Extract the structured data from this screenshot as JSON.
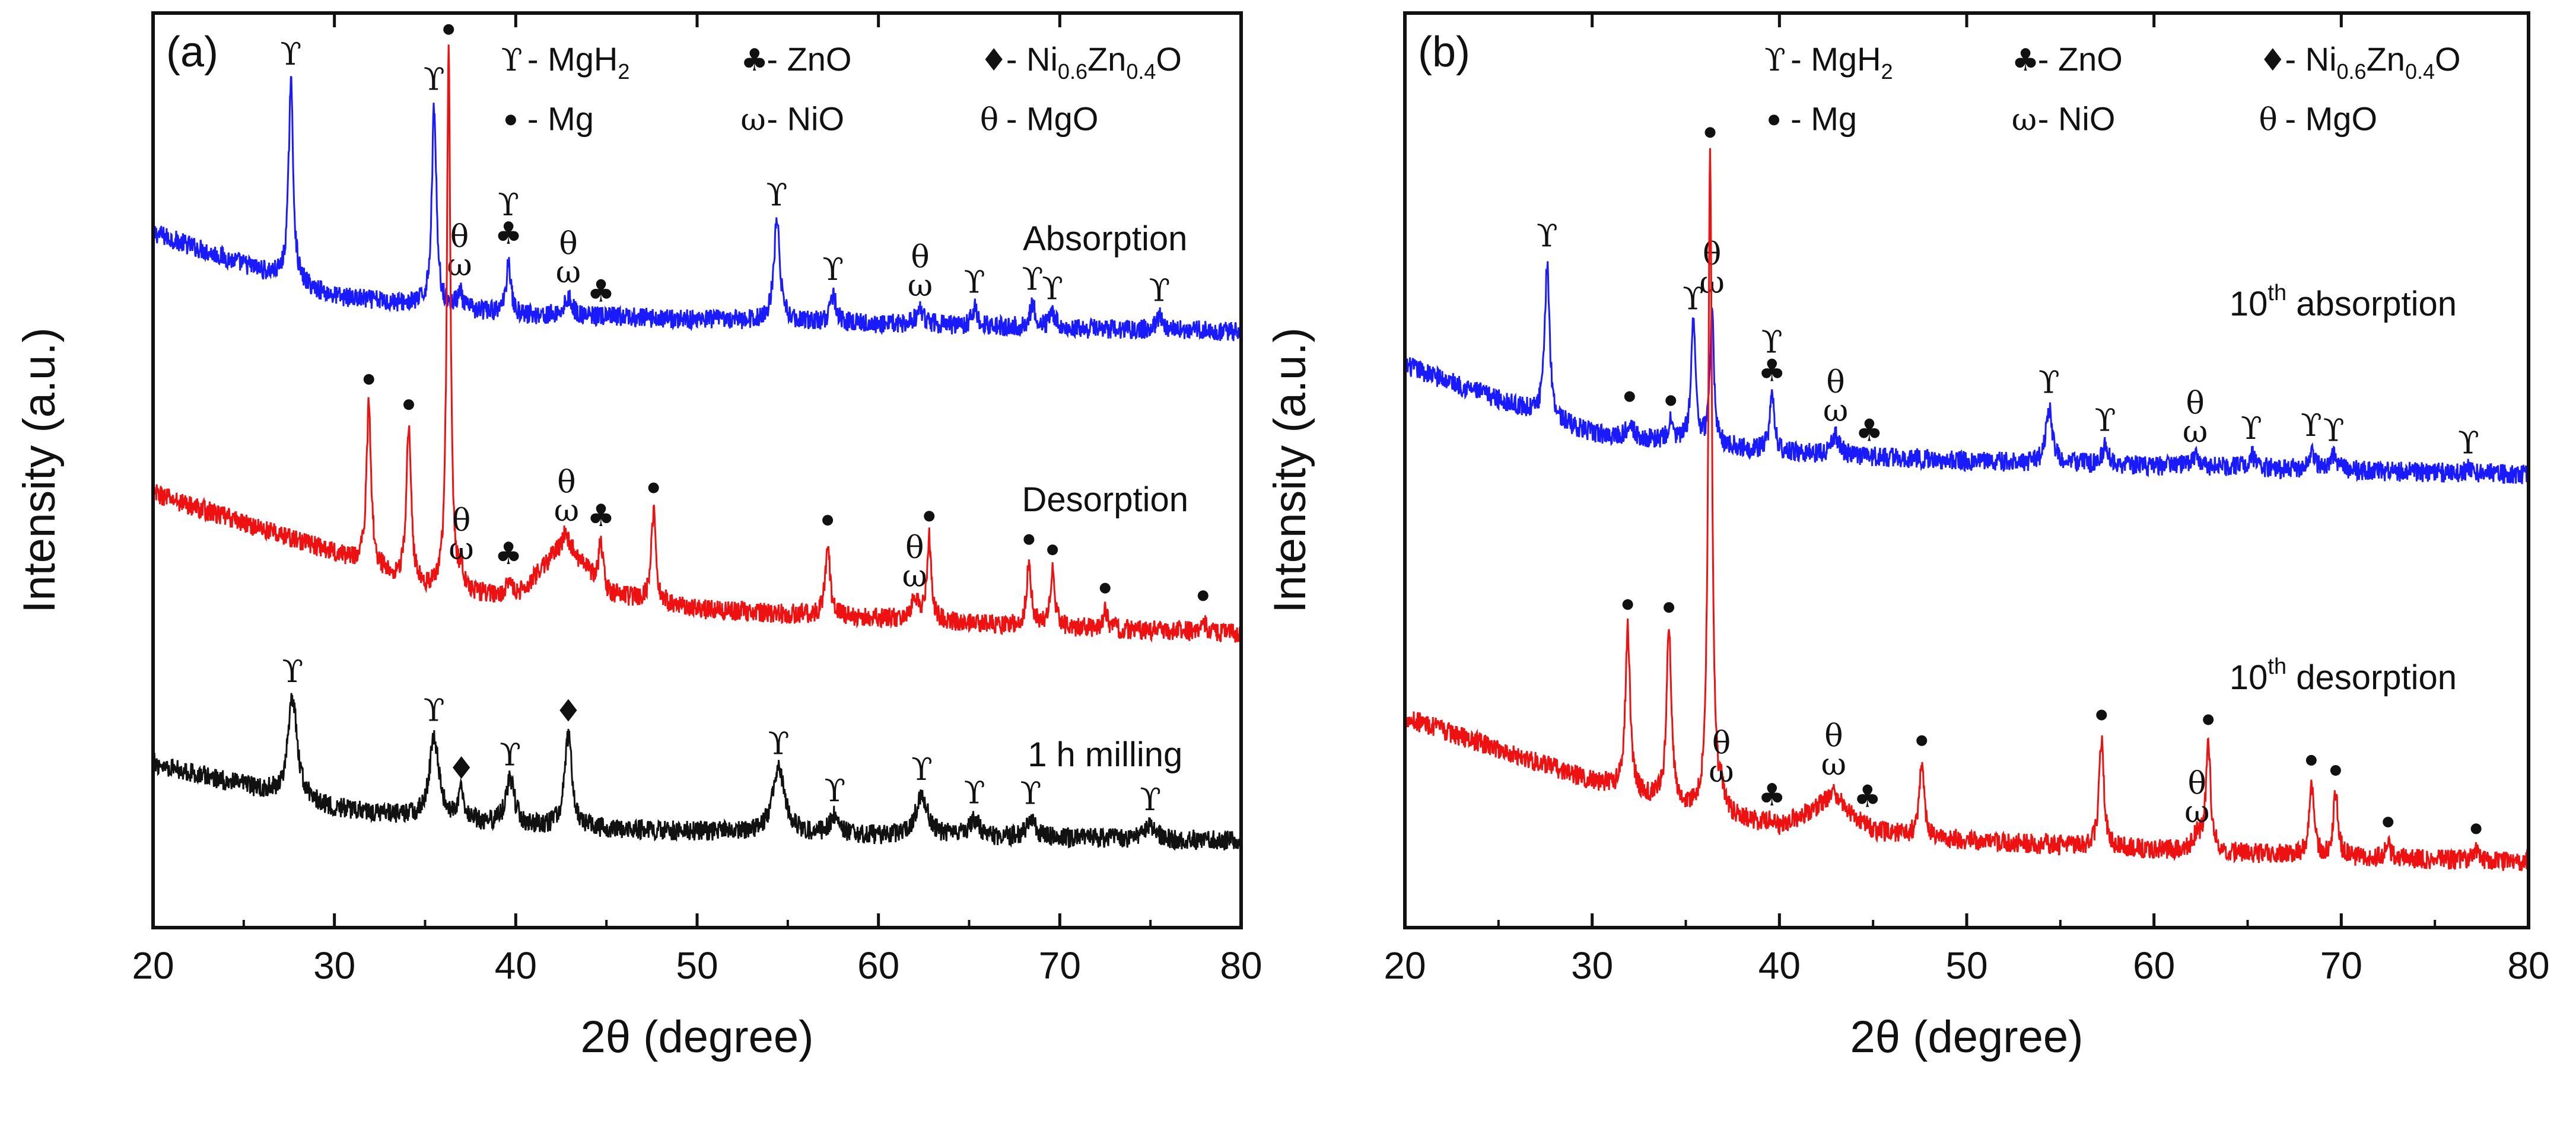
{
  "chart_data": [
    {
      "type": "line",
      "panel_label": "(a)",
      "xlabel": "2θ (degree)",
      "ylabel": "Intensity (a.u.)",
      "xlim": [
        20,
        80
      ],
      "xticks": [
        20,
        30,
        40,
        50,
        60,
        70,
        80
      ],
      "ylim": [
        0,
        100
      ],
      "yticks": [],
      "grid": false,
      "legend": [
        {
          "symbol": "ϒ",
          "suffix": "- MgH",
          "sub": "2",
          "tail": ""
        },
        {
          "symbol": "♣",
          "suffix": "- ZnO",
          "sub": "",
          "tail": ""
        },
        {
          "symbol": "♦",
          "suffix": "- Ni",
          "sub": "0.6",
          "mid": "Zn",
          "sub2": "0.4",
          "tail": "O"
        },
        {
          "symbol": "•",
          "suffix": "- Mg",
          "sub": "",
          "tail": ""
        },
        {
          "symbol": "ω",
          "suffix": "- NiO",
          "sub": "",
          "tail": ""
        },
        {
          "symbol": "θ",
          "suffix": "- MgO",
          "sub": "",
          "tail": ""
        }
      ],
      "series": [
        {
          "name": "Absorption",
          "label_pre": "Absorption",
          "label_sup": "",
          "label_post": "",
          "color": "#1a1aff",
          "baseline": [
            [
              20,
              76
            ],
            [
              30,
              69
            ],
            [
              40,
              67
            ],
            [
              50,
              66.5
            ],
            [
              60,
              66
            ],
            [
              70,
              65.5
            ],
            [
              80,
              65.2
            ]
          ],
          "peaks": [
            {
              "x": 27.6,
              "h": 22,
              "w": 0.15,
              "m": "ϒ"
            },
            {
              "x": 35.5,
              "h": 22,
              "w": 0.15,
              "m": "ϒ"
            },
            {
              "x": 36.9,
              "h": 2,
              "w": 0.15,
              "m": "θω"
            },
            {
              "x": 39.6,
              "h": 6,
              "w": 0.15,
              "m": "ϒ♣"
            },
            {
              "x": 42.9,
              "h": 2,
              "w": 0.25,
              "m": "θω"
            },
            {
              "x": 44.7,
              "h": 0,
              "w": 0.2,
              "m": "♣"
            },
            {
              "x": 54.4,
              "h": 11,
              "w": 0.2,
              "m": "ϒ"
            },
            {
              "x": 57.5,
              "h": 3,
              "w": 0.2,
              "m": "ϒ"
            },
            {
              "x": 62.3,
              "h": 1.5,
              "w": 0.3,
              "m": "θω"
            },
            {
              "x": 65.3,
              "h": 2,
              "w": 0.2,
              "m": "ϒ"
            },
            {
              "x": 68.5,
              "h": 2.5,
              "w": 0.2,
              "m": "ϒ"
            },
            {
              "x": 69.6,
              "h": 1.5,
              "w": 0.2,
              "m": "ϒ"
            },
            {
              "x": 75.5,
              "h": 1.5,
              "w": 0.2,
              "m": "ϒ"
            }
          ]
        },
        {
          "name": "Desorption",
          "label_pre": "Desorption",
          "label_sup": "",
          "label_post": "",
          "color": "#ee1111",
          "baseline": [
            [
              20,
              47.5
            ],
            [
              30,
              41
            ],
            [
              35,
              37
            ],
            [
              40,
              36
            ],
            [
              42.7,
              42
            ],
            [
              45,
              36.5
            ],
            [
              50,
              34.8
            ],
            [
              60,
              33.8
            ],
            [
              70,
              32.8
            ],
            [
              80,
              32.2
            ]
          ],
          "peaks": [
            {
              "x": 31.9,
              "h": 18,
              "w": 0.15,
              "m": "•"
            },
            {
              "x": 34.1,
              "h": 17,
              "w": 0.15,
              "m": "•"
            },
            {
              "x": 36.3,
              "h": 59,
              "w": 0.12,
              "m": "•"
            },
            {
              "x": 37.0,
              "h": 2,
              "w": 0.15,
              "m": "θω"
            },
            {
              "x": 39.6,
              "h": 2,
              "w": 0.2,
              "m": "♣"
            },
            {
              "x": 42.8,
              "h": 1,
              "w": 0.3,
              "m": "θω"
            },
            {
              "x": 44.7,
              "h": 5,
              "w": 0.15,
              "m": "♣"
            },
            {
              "x": 47.6,
              "h": 10,
              "w": 0.15,
              "m": "•"
            },
            {
              "x": 57.2,
              "h": 8,
              "w": 0.15,
              "m": "•"
            },
            {
              "x": 62.0,
              "h": 2,
              "w": 0.3,
              "m": "θω"
            },
            {
              "x": 62.8,
              "h": 9,
              "w": 0.15,
              "m": "•"
            },
            {
              "x": 68.3,
              "h": 7,
              "w": 0.15,
              "m": "•"
            },
            {
              "x": 69.6,
              "h": 6,
              "w": 0.15,
              "m": "•"
            },
            {
              "x": 72.5,
              "h": 2,
              "w": 0.15,
              "m": "•"
            },
            {
              "x": 77.9,
              "h": 1.5,
              "w": 0.15,
              "m": "•"
            }
          ]
        },
        {
          "name": "1 h milling",
          "label_pre": "1 h milling",
          "label_sup": "",
          "label_post": "",
          "color": "#111111",
          "baseline": [
            [
              20,
              18
            ],
            [
              30,
              13
            ],
            [
              40,
              11
            ],
            [
              50,
              10.5
            ],
            [
              60,
              10
            ],
            [
              70,
              9.8
            ],
            [
              80,
              9.5
            ]
          ],
          "peaks": [
            {
              "x": 27.7,
              "h": 11,
              "w": 0.3,
              "m": "ϒ"
            },
            {
              "x": 35.5,
              "h": 9,
              "w": 0.3,
              "m": "ϒ"
            },
            {
              "x": 37.0,
              "h": 3,
              "w": 0.2,
              "m": "♦"
            },
            {
              "x": 39.7,
              "h": 5,
              "w": 0.3,
              "m": "ϒ"
            },
            {
              "x": 42.9,
              "h": 10,
              "w": 0.25,
              "m": "♦"
            },
            {
              "x": 54.5,
              "h": 7,
              "w": 0.4,
              "m": "ϒ"
            },
            {
              "x": 57.6,
              "h": 2,
              "w": 0.3,
              "m": "ϒ"
            },
            {
              "x": 62.4,
              "h": 4.5,
              "w": 0.4,
              "m": "ϒ"
            },
            {
              "x": 65.3,
              "h": 2,
              "w": 0.3,
              "m": "ϒ"
            },
            {
              "x": 68.4,
              "h": 2,
              "w": 0.3,
              "m": "ϒ"
            },
            {
              "x": 75.0,
              "h": 1.5,
              "w": 0.3,
              "m": "ϒ"
            }
          ]
        }
      ]
    },
    {
      "type": "line",
      "panel_label": "(b)",
      "xlabel": "2θ (degree)",
      "ylabel": "Intensity (a.u.)",
      "xlim": [
        20,
        80
      ],
      "xticks": [
        20,
        30,
        40,
        50,
        60,
        70,
        80
      ],
      "ylim": [
        0,
        100
      ],
      "yticks": [],
      "grid": false,
      "legend": [
        {
          "symbol": "ϒ",
          "suffix": "- MgH",
          "sub": "2",
          "tail": ""
        },
        {
          "symbol": "♣",
          "suffix": "- ZnO",
          "sub": "",
          "tail": ""
        },
        {
          "symbol": "♦",
          "suffix": "- Ni",
          "sub": "0.6",
          "mid": "Zn",
          "sub2": "0.4",
          "tail": "O"
        },
        {
          "symbol": "•",
          "suffix": "- Mg",
          "sub": "",
          "tail": ""
        },
        {
          "symbol": "ω",
          "suffix": "- NiO",
          "sub": "",
          "tail": ""
        },
        {
          "symbol": "θ",
          "suffix": "- MgO",
          "sub": "",
          "tail": ""
        }
      ],
      "series": [
        {
          "name": "10th absorption",
          "label_pre": "10",
          "label_sup": "th",
          "label_post": " absorption",
          "color": "#1a1aff",
          "baseline": [
            [
              20,
              61.5
            ],
            [
              30,
              54
            ],
            [
              40,
              52
            ],
            [
              50,
              51
            ],
            [
              60,
              50.5
            ],
            [
              70,
              50
            ],
            [
              80,
              49.5
            ]
          ],
          "peaks": [
            {
              "x": 27.6,
              "h": 17,
              "w": 0.15,
              "m": "ϒ"
            },
            {
              "x": 32.0,
              "h": 2,
              "w": 0.15,
              "m": "•"
            },
            {
              "x": 34.2,
              "h": 2,
              "w": 0.15,
              "m": "•"
            },
            {
              "x": 35.4,
              "h": 13,
              "w": 0.15,
              "m": "ϒ"
            },
            {
              "x": 36.4,
              "h": 15,
              "w": 0.12,
              "m": "θω"
            },
            {
              "x": 39.6,
              "h": 6,
              "w": 0.15,
              "m": "ϒ♣"
            },
            {
              "x": 43.0,
              "h": 2,
              "w": 0.25,
              "m": "θω"
            },
            {
              "x": 44.8,
              "h": 0,
              "w": 0.2,
              "m": "♣"
            },
            {
              "x": 54.4,
              "h": 6,
              "w": 0.2,
              "m": "ϒ"
            },
            {
              "x": 57.4,
              "h": 2,
              "w": 0.2,
              "m": "ϒ"
            },
            {
              "x": 62.2,
              "h": 1,
              "w": 0.3,
              "m": "θω"
            },
            {
              "x": 65.2,
              "h": 1.5,
              "w": 0.2,
              "m": "ϒ"
            },
            {
              "x": 68.4,
              "h": 2,
              "w": 0.2,
              "m": "ϒ"
            },
            {
              "x": 69.6,
              "h": 1.5,
              "w": 0.2,
              "m": "ϒ"
            },
            {
              "x": 76.8,
              "h": 0.5,
              "w": 0.2,
              "m": "ϒ"
            }
          ]
        },
        {
          "name": "10th desorption",
          "label_pre": "10",
          "label_sup": "th",
          "label_post": " desorption",
          "color": "#ee1111",
          "baseline": [
            [
              20,
              23
            ],
            [
              30,
              16
            ],
            [
              35,
              13
            ],
            [
              40,
              11
            ],
            [
              42.9,
              14
            ],
            [
              45,
              10.5
            ],
            [
              50,
              9.5
            ],
            [
              60,
              8.5
            ],
            [
              70,
              7.7
            ],
            [
              80,
              7.2
            ]
          ],
          "peaks": [
            {
              "x": 31.9,
              "h": 18,
              "w": 0.15,
              "m": "•"
            },
            {
              "x": 34.1,
              "h": 19,
              "w": 0.15,
              "m": "•"
            },
            {
              "x": 36.3,
              "h": 72,
              "w": 0.12,
              "m": "•"
            },
            {
              "x": 36.9,
              "h": 2,
              "w": 0.15,
              "m": "θω"
            },
            {
              "x": 39.6,
              "h": 0.5,
              "w": 0.2,
              "m": "♣"
            },
            {
              "x": 42.9,
              "h": 1,
              "w": 0.3,
              "m": "θω"
            },
            {
              "x": 44.7,
              "h": 0.5,
              "w": 0.2,
              "m": "♣"
            },
            {
              "x": 47.6,
              "h": 8,
              "w": 0.15,
              "m": "•"
            },
            {
              "x": 57.2,
              "h": 12,
              "w": 0.15,
              "m": "•"
            },
            {
              "x": 62.3,
              "h": 1.5,
              "w": 0.3,
              "m": "θω"
            },
            {
              "x": 62.9,
              "h": 12,
              "w": 0.15,
              "m": "•"
            },
            {
              "x": 68.4,
              "h": 8,
              "w": 0.15,
              "m": "•"
            },
            {
              "x": 69.7,
              "h": 7,
              "w": 0.15,
              "m": "•"
            },
            {
              "x": 72.5,
              "h": 1.5,
              "w": 0.15,
              "m": "•"
            },
            {
              "x": 77.2,
              "h": 1,
              "w": 0.15,
              "m": "•"
            }
          ]
        }
      ]
    }
  ]
}
